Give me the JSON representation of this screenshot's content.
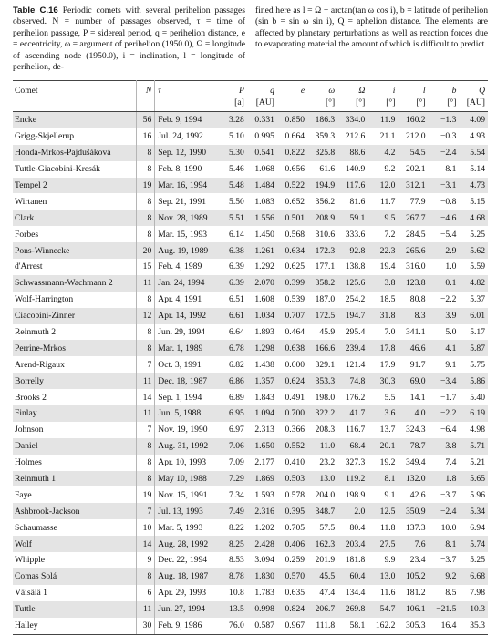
{
  "caption": {
    "label": "Table C.16",
    "left_text": "Periodic comets with several perihelion passages observed. N = number of passages observed, τ = time of perihelion passage, P = sidereal period, q = perihelion distance, e = eccentricity, ω = argument of perihelion (1950.0), Ω = longitude of ascending node (1950.0), i = inclination, l = longitude of perihelion, de-",
    "right_text": "fined here as l = Ω + arctan(tan ω cos i), b = latitude of perihelion (sin b = sin ω sin i), Q = aphelion distance. The elements are affected by planetary perturbations as well as reaction forces due to evaporating material the amount of which is difficult to predict"
  },
  "table": {
    "headers": [
      "Comet",
      "N",
      "τ",
      "P",
      "q",
      "e",
      "ω",
      "Ω",
      "i",
      "l",
      "b",
      "Q"
    ],
    "units": [
      "",
      "",
      "",
      "[a]",
      "[AU]",
      "",
      "[°]",
      "[°]",
      "[°]",
      "[°]",
      "[°]",
      "[AU]"
    ],
    "rows": [
      [
        "Encke",
        "56",
        "Feb. 9, 1994",
        "3.28",
        "0.331",
        "0.850",
        "186.3",
        "334.0",
        "11.9",
        "160.2",
        "−1.3",
        "4.09"
      ],
      [
        "Grigg-Skjellerup",
        "16",
        "Jul. 24, 1992",
        "5.10",
        "0.995",
        "0.664",
        "359.3",
        "212.6",
        "21.1",
        "212.0",
        "−0.3",
        "4.93"
      ],
      [
        "Honda-Mrkos-Pajdušáková",
        "8",
        "Sep. 12, 1990",
        "5.30",
        "0.541",
        "0.822",
        "325.8",
        "88.6",
        "4.2",
        "54.5",
        "−2.4",
        "5.54"
      ],
      [
        "Tuttle-Giacobini-Kresák",
        "8",
        "Feb. 8, 1990",
        "5.46",
        "1.068",
        "0.656",
        "61.6",
        "140.9",
        "9.2",
        "202.1",
        "8.1",
        "5.14"
      ],
      [
        "Tempel 2",
        "19",
        "Mar. 16, 1994",
        "5.48",
        "1.484",
        "0.522",
        "194.9",
        "117.6",
        "12.0",
        "312.1",
        "−3.1",
        "4.73"
      ],
      [
        "Wirtanen",
        "8",
        "Sep. 21, 1991",
        "5.50",
        "1.083",
        "0.652",
        "356.2",
        "81.6",
        "11.7",
        "77.9",
        "−0.8",
        "5.15"
      ],
      [
        "Clark",
        "8",
        "Nov. 28, 1989",
        "5.51",
        "1.556",
        "0.501",
        "208.9",
        "59.1",
        "9.5",
        "267.7",
        "−4.6",
        "4.68"
      ],
      [
        "Forbes",
        "8",
        "Mar. 15, 1993",
        "6.14",
        "1.450",
        "0.568",
        "310.6",
        "333.6",
        "7.2",
        "284.5",
        "−5.4",
        "5.25"
      ],
      [
        "Pons-Winnecke",
        "20",
        "Aug. 19, 1989",
        "6.38",
        "1.261",
        "0.634",
        "172.3",
        "92.8",
        "22.3",
        "265.6",
        "2.9",
        "5.62"
      ],
      [
        "d'Arrest",
        "15",
        "Feb. 4, 1989",
        "6.39",
        "1.292",
        "0.625",
        "177.1",
        "138.8",
        "19.4",
        "316.0",
        "1.0",
        "5.59"
      ],
      [
        "Schwassmann-Wachmann 2",
        "11",
        "Jan. 24, 1994",
        "6.39",
        "2.070",
        "0.399",
        "358.2",
        "125.6",
        "3.8",
        "123.8",
        "−0.1",
        "4.82"
      ],
      [
        "Wolf-Harrington",
        "8",
        "Apr. 4, 1991",
        "6.51",
        "1.608",
        "0.539",
        "187.0",
        "254.2",
        "18.5",
        "80.8",
        "−2.2",
        "5.37"
      ],
      [
        "Ciacobini-Zinner",
        "12",
        "Apr. 14, 1992",
        "6.61",
        "1.034",
        "0.707",
        "172.5",
        "194.7",
        "31.8",
        "8.3",
        "3.9",
        "6.01"
      ],
      [
        "Reinmuth 2",
        "8",
        "Jun. 29, 1994",
        "6.64",
        "1.893",
        "0.464",
        "45.9",
        "295.4",
        "7.0",
        "341.1",
        "5.0",
        "5.17"
      ],
      [
        "Perrine-Mrkos",
        "8",
        "Mar. 1, 1989",
        "6.78",
        "1.298",
        "0.638",
        "166.6",
        "239.4",
        "17.8",
        "46.6",
        "4.1",
        "5.87"
      ],
      [
        "Arend-Rigaux",
        "7",
        "Oct. 3, 1991",
        "6.82",
        "1.438",
        "0.600",
        "329.1",
        "121.4",
        "17.9",
        "91.7",
        "−9.1",
        "5.75"
      ],
      [
        "Borrelly",
        "11",
        "Dec. 18, 1987",
        "6.86",
        "1.357",
        "0.624",
        "353.3",
        "74.8",
        "30.3",
        "69.0",
        "−3.4",
        "5.86"
      ],
      [
        "Brooks 2",
        "14",
        "Sep. 1, 1994",
        "6.89",
        "1.843",
        "0.491",
        "198.0",
        "176.2",
        "5.5",
        "14.1",
        "−1.7",
        "5.40"
      ],
      [
        "Finlay",
        "11",
        "Jun. 5, 1988",
        "6.95",
        "1.094",
        "0.700",
        "322.2",
        "41.7",
        "3.6",
        "4.0",
        "−2.2",
        "6.19"
      ],
      [
        "Johnson",
        "7",
        "Nov. 19, 1990",
        "6.97",
        "2.313",
        "0.366",
        "208.3",
        "116.7",
        "13.7",
        "324.3",
        "−6.4",
        "4.98"
      ],
      [
        "Daniel",
        "8",
        "Aug. 31, 1992",
        "7.06",
        "1.650",
        "0.552",
        "11.0",
        "68.4",
        "20.1",
        "78.7",
        "3.8",
        "5.71"
      ],
      [
        "Holmes",
        "8",
        "Apr. 10, 1993",
        "7.09",
        "2.177",
        "0.410",
        "23.2",
        "327.3",
        "19.2",
        "349.4",
        "7.4",
        "5.21"
      ],
      [
        "Reinmuth 1",
        "8",
        "May 10, 1988",
        "7.29",
        "1.869",
        "0.503",
        "13.0",
        "119.2",
        "8.1",
        "132.0",
        "1.8",
        "5.65"
      ],
      [
        "Faye",
        "19",
        "Nov. 15, 1991",
        "7.34",
        "1.593",
        "0.578",
        "204.0",
        "198.9",
        "9.1",
        "42.6",
        "−3.7",
        "5.96"
      ],
      [
        "Ashbrook-Jackson",
        "7",
        "Jul. 13, 1993",
        "7.49",
        "2.316",
        "0.395",
        "348.7",
        "2.0",
        "12.5",
        "350.9",
        "−2.4",
        "5.34"
      ],
      [
        "Schaumasse",
        "10",
        "Mar. 5, 1993",
        "8.22",
        "1.202",
        "0.705",
        "57.5",
        "80.4",
        "11.8",
        "137.3",
        "10.0",
        "6.94"
      ],
      [
        "Wolf",
        "14",
        "Aug. 28, 1992",
        "8.25",
        "2.428",
        "0.406",
        "162.3",
        "203.4",
        "27.5",
        "7.6",
        "8.1",
        "5.74"
      ],
      [
        "Whipple",
        "9",
        "Dec. 22, 1994",
        "8.53",
        "3.094",
        "0.259",
        "201.9",
        "181.8",
        "9.9",
        "23.4",
        "−3.7",
        "5.25"
      ],
      [
        "Comas Solá",
        "8",
        "Aug. 18, 1987",
        "8.78",
        "1.830",
        "0.570",
        "45.5",
        "60.4",
        "13.0",
        "105.2",
        "9.2",
        "6.68"
      ],
      [
        "Väisälä 1",
        "6",
        "Apr. 29, 1993",
        "10.8",
        "1.783",
        "0.635",
        "47.4",
        "134.4",
        "11.6",
        "181.2",
        "8.5",
        "7.98"
      ],
      [
        "Tuttle",
        "11",
        "Jun. 27, 1994",
        "13.5",
        "0.998",
        "0.824",
        "206.7",
        "269.8",
        "54.7",
        "106.1",
        "−21.5",
        "10.3"
      ],
      [
        "Halley",
        "30",
        "Feb. 9, 1986",
        "76.0",
        "0.587",
        "0.967",
        "111.8",
        "58.1",
        "162.2",
        "305.3",
        "16.4",
        "35.3"
      ]
    ]
  }
}
